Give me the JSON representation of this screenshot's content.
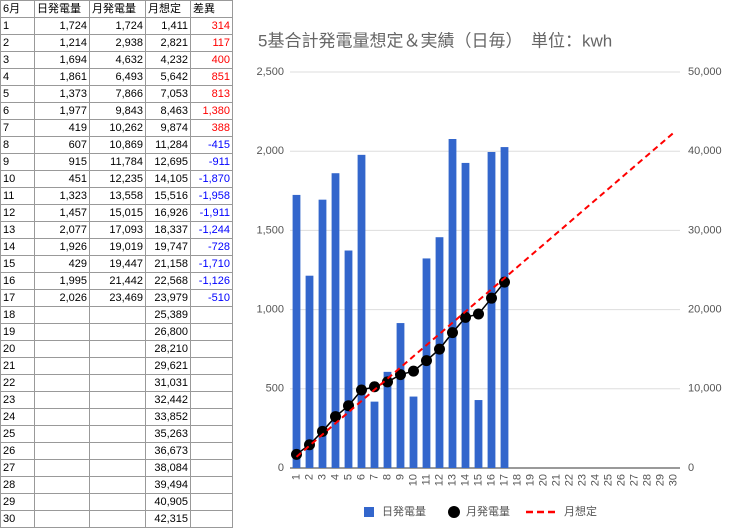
{
  "table": {
    "header": [
      "6月",
      "日発電量",
      "月発電量",
      "月想定",
      "差異"
    ],
    "positive_color": "#ff0000",
    "negative_color": "#0000ff",
    "rows": [
      [
        "1",
        "1,724",
        "1,724",
        "1,411",
        "314"
      ],
      [
        "2",
        "1,214",
        "2,938",
        "2,821",
        "117"
      ],
      [
        "3",
        "1,694",
        "4,632",
        "4,232",
        "400"
      ],
      [
        "4",
        "1,861",
        "6,493",
        "5,642",
        "851"
      ],
      [
        "5",
        "1,373",
        "7,866",
        "7,053",
        "813"
      ],
      [
        "6",
        "1,977",
        "9,843",
        "8,463",
        "1,380"
      ],
      [
        "7",
        "419",
        "10,262",
        "9,874",
        "388"
      ],
      [
        "8",
        "607",
        "10,869",
        "11,284",
        "-415"
      ],
      [
        "9",
        "915",
        "11,784",
        "12,695",
        "-911"
      ],
      [
        "10",
        "451",
        "12,235",
        "14,105",
        "-1,870"
      ],
      [
        "11",
        "1,323",
        "13,558",
        "15,516",
        "-1,958"
      ],
      [
        "12",
        "1,457",
        "15,015",
        "16,926",
        "-1,911"
      ],
      [
        "13",
        "2,077",
        "17,093",
        "18,337",
        "-1,244"
      ],
      [
        "14",
        "1,926",
        "19,019",
        "19,747",
        "-728"
      ],
      [
        "15",
        "429",
        "19,447",
        "21,158",
        "-1,710"
      ],
      [
        "16",
        "1,995",
        "21,442",
        "22,568",
        "-1,126"
      ],
      [
        "17",
        "2,026",
        "23,469",
        "23,979",
        "-510"
      ],
      [
        "18",
        null,
        null,
        "25,389",
        null
      ],
      [
        "19",
        null,
        null,
        "26,800",
        null
      ],
      [
        "20",
        null,
        null,
        "28,210",
        null
      ],
      [
        "21",
        null,
        null,
        "29,621",
        null
      ],
      [
        "22",
        null,
        null,
        "31,031",
        null
      ],
      [
        "23",
        null,
        null,
        "32,442",
        null
      ],
      [
        "24",
        null,
        null,
        "33,852",
        null
      ],
      [
        "25",
        null,
        null,
        "35,263",
        null
      ],
      [
        "26",
        null,
        null,
        "36,673",
        null
      ],
      [
        "27",
        null,
        null,
        "38,084",
        null
      ],
      [
        "28",
        null,
        null,
        "39,494",
        null
      ],
      [
        "29",
        null,
        null,
        "40,905",
        null
      ],
      [
        "30",
        null,
        null,
        "42,315",
        null
      ]
    ]
  },
  "chart_data": {
    "type": "bar_line",
    "title": "5基合計発電量想定＆実績（日毎）　単位：kwh",
    "categories": [
      "1",
      "2",
      "3",
      "4",
      "5",
      "6",
      "7",
      "8",
      "9",
      "10",
      "11",
      "12",
      "13",
      "14",
      "15",
      "16",
      "17",
      "18",
      "19",
      "20",
      "21",
      "22",
      "23",
      "24",
      "25",
      "26",
      "27",
      "28",
      "29",
      "30"
    ],
    "series": [
      {
        "name": "日発電量",
        "type": "bar",
        "color": "#3366cc",
        "values": [
          1724,
          1214,
          1694,
          1861,
          1373,
          1977,
          419,
          607,
          915,
          451,
          1323,
          1457,
          2077,
          1926,
          429,
          1995,
          2026,
          null,
          null,
          null,
          null,
          null,
          null,
          null,
          null,
          null,
          null,
          null,
          null,
          null
        ]
      },
      {
        "name": "月発電量",
        "type": "line",
        "axis": "y2",
        "color": "#000000",
        "marker": "circle",
        "values": [
          1724,
          2938,
          4632,
          6493,
          7866,
          9843,
          10262,
          10869,
          11784,
          12235,
          13558,
          15015,
          17093,
          19019,
          19447,
          21442,
          23469,
          null,
          null,
          null,
          null,
          null,
          null,
          null,
          null,
          null,
          null,
          null,
          null,
          null
        ]
      },
      {
        "name": "月想定",
        "type": "line",
        "axis": "y2",
        "color": "#ff0000",
        "dashed": true,
        "values": [
          1411,
          2821,
          4232,
          5642,
          7053,
          8463,
          9874,
          11284,
          12695,
          14105,
          15516,
          16926,
          18337,
          19747,
          21158,
          22568,
          23979,
          25389,
          26800,
          28210,
          29621,
          31031,
          32442,
          33852,
          35263,
          36673,
          38084,
          39494,
          40905,
          42315
        ]
      }
    ],
    "ylim": [
      0,
      2500
    ],
    "yticks": [
      0,
      500,
      {
        "value": 1000,
        "label": "1,000"
      },
      {
        "value": 1500,
        "label": "1,500"
      },
      {
        "value": 2000,
        "label": "2,000"
      },
      {
        "value": 2500,
        "label": "2,500"
      }
    ],
    "y2lim": [
      0,
      50000
    ],
    "y2ticks": [
      0,
      {
        "value": 10000,
        "label": "10,000"
      },
      {
        "value": 20000,
        "label": "20,000"
      },
      {
        "value": 30000,
        "label": "30,000"
      },
      {
        "value": 40000,
        "label": "40,000"
      },
      {
        "value": 50000,
        "label": "50,000"
      }
    ],
    "grid": true,
    "legend": "bottom"
  }
}
